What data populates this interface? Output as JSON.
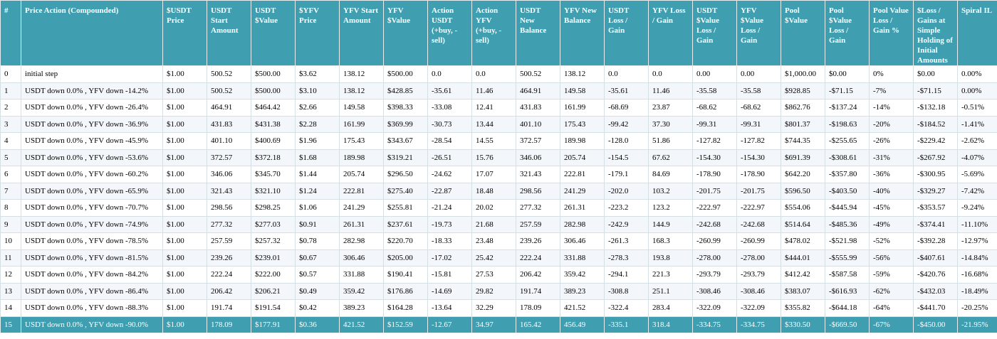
{
  "table": {
    "headers": [
      "#",
      "Price Action (Compounded)",
      "$USDT Price",
      "USDT Start Amount",
      "USDT $Value",
      "$YFV Price",
      "YFV Start Amount",
      "YFV $Value",
      "Action USDT (+buy, -sell)",
      "Action YFV (+buy, -sell)",
      "USDT New Balance",
      "YFV New Balance",
      "USDT Loss / Gain",
      "YFV Loss / Gain",
      "USDT $Value Loss / Gain",
      "YFV $Value Loss / Gain",
      "Pool $Value",
      "Pool $Value Loss / Gain",
      "Pool Value Loss / Gain %",
      "$Loss / Gains at Simple Holding of Initial Amounts",
      "Spiral IL"
    ],
    "rows": [
      [
        "0",
        "initial step",
        "$1.00",
        "500.52",
        "$500.00",
        "$3.62",
        "138.12",
        "$500.00",
        "0.0",
        "0.0",
        "500.52",
        "138.12",
        "0.0",
        "0.0",
        "0.00",
        "0.00",
        "$1,000.00",
        "$0.00",
        "0%",
        "$0.00",
        "0.00%"
      ],
      [
        "1",
        "USDT down 0.0% , YFV down -14.2%",
        "$1.00",
        "500.52",
        "$500.00",
        "$3.10",
        "138.12",
        "$428.85",
        "-35.61",
        "11.46",
        "464.91",
        "149.58",
        "-35.61",
        "11.46",
        "-35.58",
        "-35.58",
        "$928.85",
        "-$71.15",
        "-7%",
        "-$71.15",
        "0.00%"
      ],
      [
        "2",
        "USDT down 0.0% , YFV down -26.4%",
        "$1.00",
        "464.91",
        "$464.42",
        "$2.66",
        "149.58",
        "$398.33",
        "-33.08",
        "12.41",
        "431.83",
        "161.99",
        "-68.69",
        "23.87",
        "-68.62",
        "-68.62",
        "$862.76",
        "-$137.24",
        "-14%",
        "-$132.18",
        "-0.51%"
      ],
      [
        "3",
        "USDT down 0.0% , YFV down -36.9%",
        "$1.00",
        "431.83",
        "$431.38",
        "$2.28",
        "161.99",
        "$369.99",
        "-30.73",
        "13.44",
        "401.10",
        "175.43",
        "-99.42",
        "37.30",
        "-99.31",
        "-99.31",
        "$801.37",
        "-$198.63",
        "-20%",
        "-$184.52",
        "-1.41%"
      ],
      [
        "4",
        "USDT down 0.0% , YFV down -45.9%",
        "$1.00",
        "401.10",
        "$400.69",
        "$1.96",
        "175.43",
        "$343.67",
        "-28.54",
        "14.55",
        "372.57",
        "189.98",
        "-128.0",
        "51.86",
        "-127.82",
        "-127.82",
        "$744.35",
        "-$255.65",
        "-26%",
        "-$229.42",
        "-2.62%"
      ],
      [
        "5",
        "USDT down 0.0% , YFV down -53.6%",
        "$1.00",
        "372.57",
        "$372.18",
        "$1.68",
        "189.98",
        "$319.21",
        "-26.51",
        "15.76",
        "346.06",
        "205.74",
        "-154.5",
        "67.62",
        "-154.30",
        "-154.30",
        "$691.39",
        "-$308.61",
        "-31%",
        "-$267.92",
        "-4.07%"
      ],
      [
        "6",
        "USDT down 0.0% , YFV down -60.2%",
        "$1.00",
        "346.06",
        "$345.70",
        "$1.44",
        "205.74",
        "$296.50",
        "-24.62",
        "17.07",
        "321.43",
        "222.81",
        "-179.1",
        "84.69",
        "-178.90",
        "-178.90",
        "$642.20",
        "-$357.80",
        "-36%",
        "-$300.95",
        "-5.69%"
      ],
      [
        "7",
        "USDT down 0.0% , YFV down -65.9%",
        "$1.00",
        "321.43",
        "$321.10",
        "$1.24",
        "222.81",
        "$275.40",
        "-22.87",
        "18.48",
        "298.56",
        "241.29",
        "-202.0",
        "103.2",
        "-201.75",
        "-201.75",
        "$596.50",
        "-$403.50",
        "-40%",
        "-$329.27",
        "-7.42%"
      ],
      [
        "8",
        "USDT down 0.0% , YFV down -70.7%",
        "$1.00",
        "298.56",
        "$298.25",
        "$1.06",
        "241.29",
        "$255.81",
        "-21.24",
        "20.02",
        "277.32",
        "261.31",
        "-223.2",
        "123.2",
        "-222.97",
        "-222.97",
        "$554.06",
        "-$445.94",
        "-45%",
        "-$353.57",
        "-9.24%"
      ],
      [
        "9",
        "USDT down 0.0% , YFV down -74.9%",
        "$1.00",
        "277.32",
        "$277.03",
        "$0.91",
        "261.31",
        "$237.61",
        "-19.73",
        "21.68",
        "257.59",
        "282.98",
        "-242.9",
        "144.9",
        "-242.68",
        "-242.68",
        "$514.64",
        "-$485.36",
        "-49%",
        "-$374.41",
        "-11.10%"
      ],
      [
        "10",
        "USDT down 0.0% , YFV down -78.5%",
        "$1.00",
        "257.59",
        "$257.32",
        "$0.78",
        "282.98",
        "$220.70",
        "-18.33",
        "23.48",
        "239.26",
        "306.46",
        "-261.3",
        "168.3",
        "-260.99",
        "-260.99",
        "$478.02",
        "-$521.98",
        "-52%",
        "-$392.28",
        "-12.97%"
      ],
      [
        "11",
        "USDT down 0.0% , YFV down -81.5%",
        "$1.00",
        "239.26",
        "$239.01",
        "$0.67",
        "306.46",
        "$205.00",
        "-17.02",
        "25.42",
        "222.24",
        "331.88",
        "-278.3",
        "193.8",
        "-278.00",
        "-278.00",
        "$444.01",
        "-$555.99",
        "-56%",
        "-$407.61",
        "-14.84%"
      ],
      [
        "12",
        "USDT down 0.0% , YFV down -84.2%",
        "$1.00",
        "222.24",
        "$222.00",
        "$0.57",
        "331.88",
        "$190.41",
        "-15.81",
        "27.53",
        "206.42",
        "359.42",
        "-294.1",
        "221.3",
        "-293.79",
        "-293.79",
        "$412.42",
        "-$587.58",
        "-59%",
        "-$420.76",
        "-16.68%"
      ],
      [
        "13",
        "USDT down 0.0% , YFV down -86.4%",
        "$1.00",
        "206.42",
        "$206.21",
        "$0.49",
        "359.42",
        "$176.86",
        "-14.69",
        "29.82",
        "191.74",
        "389.23",
        "-308.8",
        "251.1",
        "-308.46",
        "-308.46",
        "$383.07",
        "-$616.93",
        "-62%",
        "-$432.03",
        "-18.49%"
      ],
      [
        "14",
        "USDT down 0.0% , YFV down -88.3%",
        "$1.00",
        "191.74",
        "$191.54",
        "$0.42",
        "389.23",
        "$164.28",
        "-13.64",
        "32.29",
        "178.09",
        "421.52",
        "-322.4",
        "283.4",
        "-322.09",
        "-322.09",
        "$355.82",
        "-$644.18",
        "-64%",
        "-$441.70",
        "-20.25%"
      ],
      [
        "15",
        "USDT down 0.0% , YFV down -90.0%",
        "$1.00",
        "178.09",
        "$177.91",
        "$0.36",
        "421.52",
        "$152.59",
        "-12.67",
        "34.97",
        "165.42",
        "456.49",
        "-335.1",
        "318.4",
        "-334.75",
        "-334.75",
        "$330.50",
        "-$669.50",
        "-67%",
        "-$450.00",
        "-21.95%"
      ]
    ],
    "highlighted_row": 15,
    "colors": {
      "header_bg": "#3f9fb0",
      "header_text": "#ffffff",
      "highlight_bg": "#3f9fb0",
      "stripe_bg": "#f3f6fb"
    }
  }
}
